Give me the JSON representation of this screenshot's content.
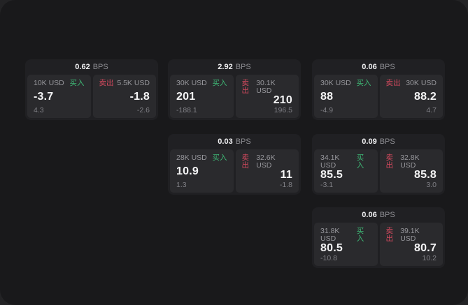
{
  "labels": {
    "bps_unit": "BPS",
    "buy": "买入",
    "sell": "卖出"
  },
  "colors": {
    "surface_bg": "#19191b",
    "card_bg": "#202023",
    "panel_bg": "#2a2a2d",
    "buy_green": "#3eb875",
    "sell_red": "#d64a5f",
    "primary_text": "#f5f5f6",
    "muted_text": "#8e8e93"
  },
  "cards": [
    {
      "bps": "0.62",
      "buy": {
        "amount": "10K USD",
        "value": "-3.7",
        "delta": "4.3"
      },
      "sell": {
        "amount": "5.5K USD",
        "value": "-1.8",
        "delta": "-2.6"
      }
    },
    {
      "bps": "2.92",
      "buy": {
        "amount": "30K USD",
        "value": "201",
        "delta": "-188.1"
      },
      "sell": {
        "amount": "30.1K USD",
        "value": "210",
        "delta": "196.5"
      }
    },
    {
      "bps": "0.06",
      "buy": {
        "amount": "30K USD",
        "value": "88",
        "delta": "-4.9"
      },
      "sell": {
        "amount": "30K USD",
        "value": "88.2",
        "delta": "4.7"
      }
    },
    {
      "bps": "0.03",
      "buy": {
        "amount": "28K USD",
        "value": "10.9",
        "delta": "1.3"
      },
      "sell": {
        "amount": "32.6K USD",
        "value": "11",
        "delta": "-1.8"
      }
    },
    {
      "bps": "0.09",
      "buy": {
        "amount": "34.1K USD",
        "value": "85.5",
        "delta": "-3.1"
      },
      "sell": {
        "amount": "32.8K USD",
        "value": "85.8",
        "delta": "3.0"
      }
    },
    {
      "bps": "0.06",
      "buy": {
        "amount": "31.8K USD",
        "value": "80.5",
        "delta": "-10.8"
      },
      "sell": {
        "amount": "39.1K USD",
        "value": "80.7",
        "delta": "10.2"
      }
    }
  ]
}
